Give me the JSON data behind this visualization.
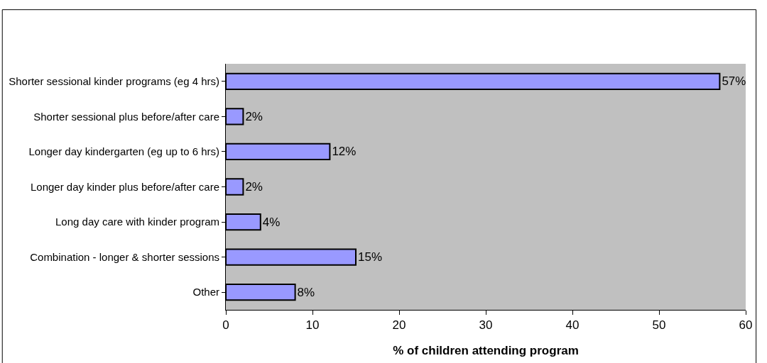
{
  "chart_data": {
    "type": "bar",
    "orientation": "horizontal",
    "categories": [
      "Shorter sessional kinder programs (eg 4 hrs)",
      "Shorter sessional plus before/after care",
      "Longer day kindergarten (eg up to 6 hrs)",
      "Longer day kinder plus before/after care",
      "Long day care with kinder program",
      "Combination - longer & shorter sessions",
      "Other"
    ],
    "values": [
      57,
      2,
      12,
      2,
      4,
      15,
      8
    ],
    "value_labels": [
      "57%",
      "2%",
      "12%",
      "2%",
      "4%",
      "15%",
      "8%"
    ],
    "color": "#9999ff",
    "xlabel": "% of children attending program",
    "xlim": [
      0,
      60
    ],
    "xticks": [
      0,
      10,
      20,
      30,
      40,
      50,
      60
    ],
    "grid": false,
    "legend": false
  }
}
